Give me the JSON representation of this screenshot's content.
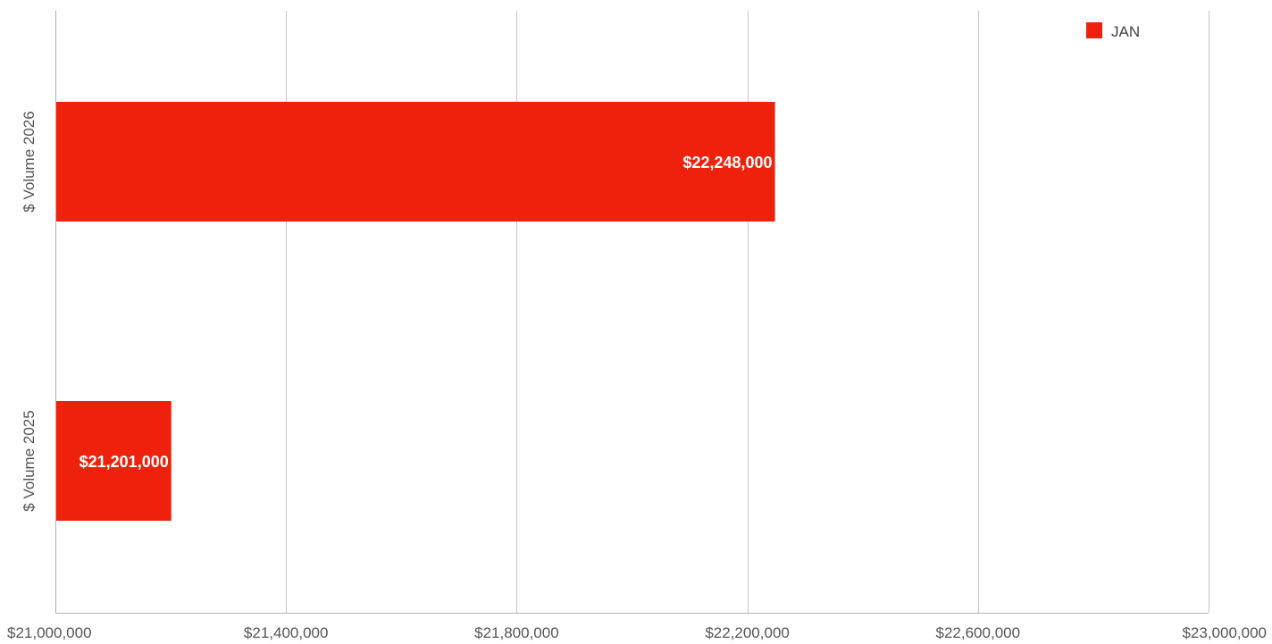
{
  "chart_data": {
    "type": "bar",
    "orientation": "horizontal",
    "categories": [
      "$ Volume 2026",
      "$ Volume 2025"
    ],
    "series": [
      {
        "name": "JAN",
        "color": "#ee220c",
        "values": [
          22248000,
          21201000
        ],
        "data_labels": [
          "$22,248,000",
          "$21,201,000"
        ]
      }
    ],
    "x_ticks": [
      21000000,
      21400000,
      21800000,
      22200000,
      22600000,
      23000000
    ],
    "x_tick_labels": [
      "$21,000,000",
      "$21,400,000",
      "$21,800,000",
      "$22,200,000",
      "$22,600,000",
      "$23,000,000"
    ],
    "xlim": [
      21000000,
      23000000
    ],
    "grid": true,
    "legend_position": "top-right",
    "title": "",
    "xlabel": "",
    "ylabel": ""
  }
}
